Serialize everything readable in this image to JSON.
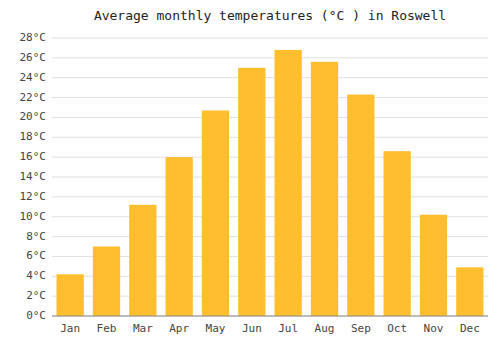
{
  "chart_data": {
    "type": "bar",
    "title": "Average monthly temperatures (°C ) in Roswell",
    "categories": [
      "Jan",
      "Feb",
      "Mar",
      "Apr",
      "May",
      "Jun",
      "Jul",
      "Aug",
      "Sep",
      "Oct",
      "Nov",
      "Dec"
    ],
    "values": [
      4.2,
      7.0,
      11.2,
      16.0,
      20.7,
      25.0,
      26.8,
      25.6,
      22.3,
      16.6,
      10.2,
      4.9
    ],
    "color": "#FFBE2D",
    "ylim": [
      0,
      28
    ],
    "yticks": [
      {
        "value": 0,
        "label": "0°C"
      },
      {
        "value": 2,
        "label": "2°C"
      },
      {
        "value": 4,
        "label": "4°C"
      },
      {
        "value": 6,
        "label": "6°C"
      },
      {
        "value": 8,
        "label": "8°C"
      },
      {
        "value": 10,
        "label": "10°C"
      },
      {
        "value": 12,
        "label": "12°C"
      },
      {
        "value": 14,
        "label": "14°C"
      },
      {
        "value": 16,
        "label": "16°C"
      },
      {
        "value": 18,
        "label": "18°C"
      },
      {
        "value": 20,
        "label": "20°C"
      },
      {
        "value": 22,
        "label": "22°C"
      },
      {
        "value": 24,
        "label": "24°C"
      },
      {
        "value": 26,
        "label": "26°C"
      },
      {
        "value": 28,
        "label": "28°C"
      }
    ],
    "grid": true
  }
}
